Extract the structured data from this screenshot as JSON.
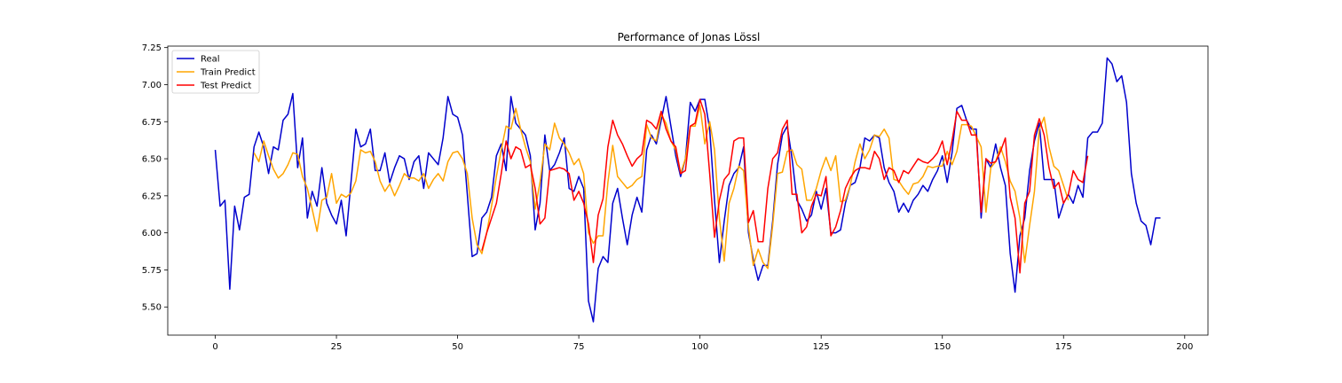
{
  "chart_data": {
    "type": "line",
    "title": "Performance of Jonas Lössl",
    "xlabel": "",
    "ylabel": "",
    "xlim": [
      -9.8,
      204.8
    ],
    "ylim": [
      5.31,
      7.26
    ],
    "x_ticks": [
      0,
      25,
      50,
      75,
      100,
      125,
      150,
      175,
      200
    ],
    "x_tick_labels": [
      "0",
      "25",
      "50",
      "75",
      "100",
      "125",
      "150",
      "175",
      "200"
    ],
    "y_ticks": [
      5.5,
      5.75,
      6.0,
      6.25,
      6.5,
      6.75,
      7.0,
      7.25
    ],
    "y_tick_labels": [
      "5.50",
      "5.75",
      "6.00",
      "6.25",
      "6.50",
      "6.75",
      "7.00",
      "7.25"
    ],
    "grid": false,
    "legend_position": "top-left",
    "series": [
      {
        "name": "Real",
        "color": "#0000cd",
        "x_start": 0,
        "values": [
          6.56,
          6.18,
          6.22,
          5.62,
          6.18,
          6.02,
          6.24,
          6.26,
          6.58,
          6.68,
          6.58,
          6.4,
          6.58,
          6.56,
          6.76,
          6.8,
          6.94,
          6.44,
          6.64,
          6.1,
          6.28,
          6.18,
          6.44,
          6.2,
          6.12,
          6.06,
          6.22,
          5.98,
          6.34,
          6.7,
          6.58,
          6.6,
          6.7,
          6.42,
          6.42,
          6.54,
          6.34,
          6.44,
          6.52,
          6.5,
          6.36,
          6.48,
          6.52,
          6.3,
          6.54,
          6.5,
          6.46,
          6.64,
          6.92,
          6.8,
          6.78,
          6.66,
          6.26,
          5.84,
          5.86,
          6.1,
          6.14,
          6.24,
          6.52,
          6.6,
          6.42,
          6.92,
          6.74,
          6.7,
          6.66,
          6.52,
          6.02,
          6.2,
          6.66,
          6.42,
          6.46,
          6.54,
          6.64,
          6.3,
          6.28,
          6.38,
          6.3,
          5.54,
          5.4,
          5.76,
          5.84,
          5.8,
          6.2,
          6.3,
          6.1,
          5.92,
          6.12,
          6.24,
          6.14,
          6.56,
          6.66,
          6.6,
          6.76,
          6.92,
          6.72,
          6.52,
          6.38,
          6.5,
          6.88,
          6.82,
          6.9,
          6.9,
          6.7,
          6.22,
          5.8,
          6.08,
          6.32,
          6.4,
          6.44,
          6.58,
          6.0,
          5.82,
          5.68,
          5.78,
          5.78,
          6.08,
          6.46,
          6.66,
          6.72,
          6.5,
          6.22,
          6.16,
          6.08,
          6.12,
          6.28,
          6.16,
          6.3,
          6.0,
          6.0,
          6.02,
          6.2,
          6.32,
          6.34,
          6.44,
          6.64,
          6.62,
          6.66,
          6.64,
          6.44,
          6.34,
          6.28,
          6.14,
          6.2,
          6.14,
          6.22,
          6.26,
          6.32,
          6.28,
          6.36,
          6.42,
          6.52,
          6.34,
          6.54,
          6.84,
          6.86,
          6.76,
          6.7,
          6.7,
          6.1,
          6.5,
          6.44,
          6.6,
          6.44,
          6.32,
          5.86,
          5.6,
          5.98,
          6.1,
          6.42,
          6.62,
          6.74,
          6.36,
          6.36,
          6.36,
          6.1,
          6.2,
          6.26,
          6.2,
          6.32,
          6.24,
          6.64,
          6.68,
          6.68,
          6.74,
          7.18,
          7.14,
          7.02,
          7.06,
          6.88,
          6.4,
          6.2,
          6.08,
          6.05,
          5.92,
          6.1,
          6.1
        ]
      },
      {
        "name": "Train Predict",
        "color": "#ffa500",
        "x_start": 8,
        "values": [
          6.54,
          6.48,
          6.62,
          6.52,
          6.43,
          6.37,
          6.4,
          6.46,
          6.54,
          6.53,
          6.38,
          6.3,
          6.16,
          6.01,
          6.22,
          6.24,
          6.4,
          6.2,
          6.26,
          6.24,
          6.27,
          6.35,
          6.56,
          6.54,
          6.55,
          6.48,
          6.35,
          6.28,
          6.33,
          6.25,
          6.32,
          6.4,
          6.37,
          6.37,
          6.35,
          6.4,
          6.3,
          6.36,
          6.4,
          6.35,
          6.48,
          6.54,
          6.55,
          6.5,
          6.4,
          6.1,
          5.92,
          5.86,
          6.0,
          6.18,
          6.38,
          6.56,
          6.72,
          6.7,
          6.84,
          6.7,
          6.58,
          6.48,
          6.16,
          6.34,
          6.6,
          6.56,
          6.74,
          6.64,
          6.6,
          6.54,
          6.46,
          6.5,
          6.4,
          6.0,
          5.93,
          5.98,
          5.98,
          6.34,
          6.59,
          6.38,
          6.34,
          6.3,
          6.32,
          6.36,
          6.38,
          6.73,
          6.64,
          6.62,
          6.8,
          6.74,
          6.62,
          6.56,
          6.4,
          6.5,
          6.72,
          6.72,
          6.86,
          6.6,
          6.75,
          6.56,
          6.1,
          5.81,
          6.2,
          6.3,
          6.45,
          6.42,
          6.04,
          5.78,
          5.89,
          5.8,
          5.76,
          6.05,
          6.4,
          6.41,
          6.55,
          6.56,
          6.46,
          6.43,
          6.22,
          6.22,
          6.3,
          6.42,
          6.51,
          6.42,
          6.52,
          6.21,
          6.22,
          6.32,
          6.48,
          6.6,
          6.5,
          6.56,
          6.66,
          6.65,
          6.7,
          6.64,
          6.36,
          6.35,
          6.3,
          6.26,
          6.33,
          6.34,
          6.38,
          6.45,
          6.44,
          6.45,
          6.45,
          6.55,
          6.46,
          6.55,
          6.73,
          6.73,
          6.72,
          6.65,
          6.58,
          6.14,
          6.44,
          6.48,
          6.58,
          6.48,
          6.35,
          6.28,
          6.1,
          5.8,
          6.05,
          6.28,
          6.7,
          6.78,
          6.58,
          6.45,
          6.42,
          6.32,
          6.22
        ]
      },
      {
        "name": "Test Predict",
        "color": "#ff0000",
        "x_start": 55,
        "values": [
          5.88,
          6.0,
          6.1,
          6.2,
          6.4,
          6.62,
          6.5,
          6.58,
          6.56,
          6.44,
          6.46,
          6.3,
          6.06,
          6.1,
          6.42,
          6.43,
          6.44,
          6.43,
          6.4,
          6.22,
          6.28,
          6.2,
          6.06,
          5.8,
          6.12,
          6.23,
          6.58,
          6.76,
          6.66,
          6.6,
          6.52,
          6.45,
          6.5,
          6.53,
          6.76,
          6.74,
          6.7,
          6.82,
          6.7,
          6.62,
          6.58,
          6.4,
          6.42,
          6.72,
          6.74,
          6.9,
          6.8,
          6.4,
          5.97,
          6.22,
          6.36,
          6.4,
          6.62,
          6.64,
          6.64,
          6.07,
          6.15,
          5.94,
          5.94,
          6.3,
          6.5,
          6.54,
          6.7,
          6.76,
          6.26,
          6.26,
          6.0,
          6.04,
          6.18,
          6.26,
          6.25,
          6.38,
          5.98,
          6.04,
          6.15,
          6.3,
          6.37,
          6.42,
          6.44,
          6.44,
          6.43,
          6.55,
          6.5,
          6.36,
          6.44,
          6.42,
          6.34,
          6.42,
          6.4,
          6.45,
          6.5,
          6.48,
          6.47,
          6.5,
          6.54,
          6.62,
          6.46,
          6.62,
          6.82,
          6.76,
          6.76,
          6.66,
          6.66,
          6.14,
          6.5,
          6.47,
          6.48,
          6.55,
          6.64,
          6.24,
          6.1,
          5.73,
          6.2,
          6.28,
          6.66,
          6.77,
          6.66,
          6.44,
          6.3,
          6.34,
          6.2,
          6.26,
          6.42,
          6.36,
          6.34,
          6.52
        ]
      }
    ]
  }
}
